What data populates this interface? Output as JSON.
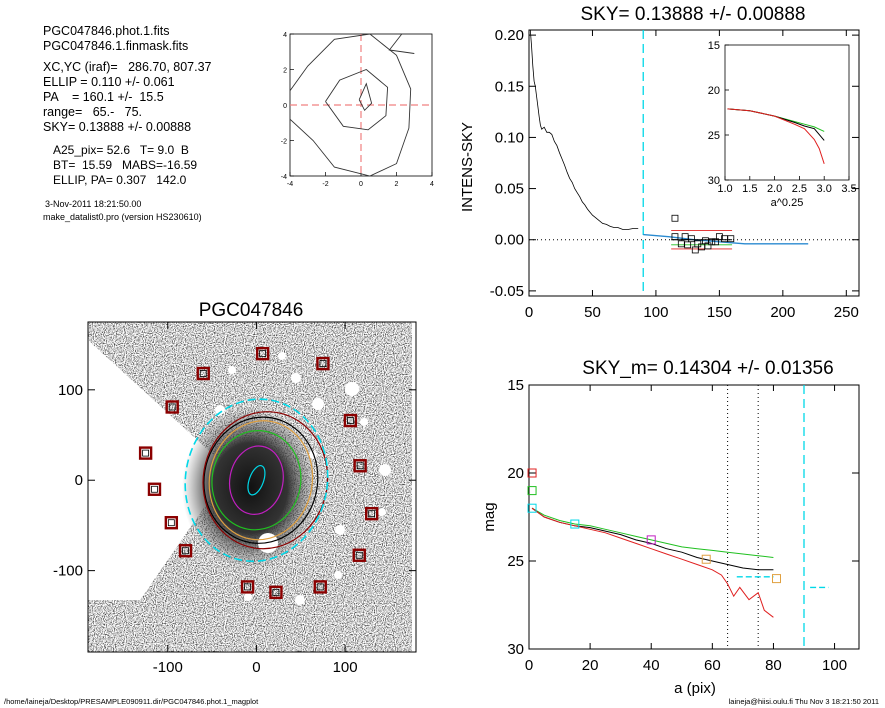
{
  "info": {
    "lines1": [
      "PGC047846.phot.1.fits",
      "PGC047846.1.finmask.fits"
    ],
    "lines2": [
      "XC,YC (iraf)=   286.70, 807.37",
      "ELLIP = 0.110 +/- 0.061",
      "PA    = 160.1 +/-  15.5",
      "range=   65.-   75.",
      "SKY= 0.13888 +/- 0.00888"
    ],
    "lines3": [
      "A25_pix= 52.6   T= 9.0  B",
      "BT=  15.59   MABS=-16.59",
      "ELLIP, PA= 0.307   142.0"
    ],
    "date": "3-Nov-2011 18:21:50.00",
    "program": "make_datalist0.pro (version HS230610)"
  },
  "footer": {
    "left": "/home/laineja/Desktop/PRESAMPLE090911.dir/PGC047846.phot.1_magplot",
    "right": "laineja@hiisi.oulu.fi  Thu Nov  3 18:21:50 2011"
  },
  "colors": {
    "cyan": "#00d8e8",
    "red": "#e02020",
    "green": "#20c020",
    "magenta": "#c020c0",
    "orange": "#e0a040",
    "black": "#000000",
    "darkred": "#8b0000"
  },
  "chart_data": [
    {
      "id": "contour",
      "type": "contour",
      "xlim": [
        -4,
        4
      ],
      "ylim": [
        -4,
        4
      ],
      "xticks": [
        -4,
        -2,
        0,
        2,
        4
      ],
      "yticks": [
        -4,
        -2,
        0,
        2,
        4
      ],
      "center": [
        0,
        0
      ],
      "contours": [
        [
          [
            -0.1,
            0.3
          ],
          [
            0.3,
            1.2
          ],
          [
            0.6,
            0.1
          ],
          [
            0.2,
            -0.3
          ],
          [
            -0.1,
            0.3
          ]
        ],
        [
          [
            -2.0,
            0.2
          ],
          [
            -1.2,
            1.4
          ],
          [
            0.3,
            2.0
          ],
          [
            1.5,
            1.0
          ],
          [
            1.4,
            -0.6
          ],
          [
            0.4,
            -1.4
          ],
          [
            -1.0,
            -1.2
          ],
          [
            -2.0,
            0.2
          ]
        ],
        [
          [
            -4.0,
            0.8
          ],
          [
            -3.0,
            2.2
          ],
          [
            -1.5,
            3.7
          ],
          [
            0.5,
            4.0
          ],
          [
            2.0,
            2.8
          ],
          [
            2.8,
            0.9
          ],
          [
            2.7,
            -1.3
          ],
          [
            2.0,
            -3.3
          ],
          [
            0.5,
            -4.0
          ],
          [
            -1.5,
            -3.5
          ],
          [
            -2.7,
            -2.0
          ],
          [
            -4.0,
            -0.8
          ]
        ]
      ],
      "extra_line": [
        [
          3.0,
          2.9
        ],
        [
          1.6,
          3.1
        ],
        [
          2.3,
          4.0
        ]
      ]
    },
    {
      "id": "sky",
      "type": "line",
      "title": "SKY= 0.13888 +/- 0.00888",
      "xlabel": "",
      "ylabel": "INTENS-SKY",
      "xlim": [
        0,
        260
      ],
      "ylim": [
        -0.055,
        0.205
      ],
      "xticks": [
        0,
        50,
        100,
        150,
        200,
        250
      ],
      "yticks": [
        -0.05,
        0.0,
        0.05,
        0.1,
        0.15,
        0.2
      ],
      "ytick_labels": [
        "-0.05",
        "0.00",
        "0.05",
        "0.10",
        "0.15",
        "0.20"
      ],
      "profile": [
        [
          1,
          0.205
        ],
        [
          2,
          0.19
        ],
        [
          3,
          0.17
        ],
        [
          4,
          0.155
        ],
        [
          5,
          0.15
        ],
        [
          6,
          0.14
        ],
        [
          7,
          0.13
        ],
        [
          8,
          0.12
        ],
        [
          9,
          0.112
        ],
        [
          10,
          0.108
        ],
        [
          12,
          0.11
        ],
        [
          14,
          0.105
        ],
        [
          16,
          0.105
        ],
        [
          18,
          0.103
        ],
        [
          20,
          0.096
        ],
        [
          22,
          0.092
        ],
        [
          24,
          0.085
        ],
        [
          26,
          0.079
        ],
        [
          28,
          0.073
        ],
        [
          30,
          0.066
        ],
        [
          32,
          0.06
        ],
        [
          34,
          0.056
        ],
        [
          36,
          0.05
        ],
        [
          38,
          0.046
        ],
        [
          40,
          0.042
        ],
        [
          42,
          0.037
        ],
        [
          44,
          0.034
        ],
        [
          46,
          0.03
        ],
        [
          48,
          0.027
        ],
        [
          50,
          0.024
        ],
        [
          52,
          0.022
        ],
        [
          55,
          0.019
        ],
        [
          58,
          0.016
        ],
        [
          61,
          0.015
        ],
        [
          64,
          0.013
        ],
        [
          67,
          0.012
        ],
        [
          70,
          0.012
        ],
        [
          74,
          0.01
        ],
        [
          78,
          0.01
        ],
        [
          82,
          0.011
        ],
        [
          86,
          0.011
        ]
      ],
      "sky_line": [
        [
          90,
          0.005
        ],
        [
          110,
          0.003
        ],
        [
          130,
          0.0
        ],
        [
          150,
          -0.002
        ],
        [
          170,
          -0.004
        ],
        [
          190,
          -0.004
        ],
        [
          220,
          -0.004
        ]
      ],
      "sky_vline": 90,
      "red_levels": [
        0.009,
        -0.009
      ],
      "red_range": [
        112,
        160
      ],
      "squares": [
        [
          115,
          0.003
        ],
        [
          115,
          0.021
        ],
        [
          120,
          -0.004
        ],
        [
          123,
          0.003
        ],
        [
          125,
          -0.005
        ],
        [
          128,
          0.001
        ],
        [
          131,
          -0.01
        ],
        [
          133,
          -0.004
        ],
        [
          136,
          -0.007
        ],
        [
          139,
          -0.001
        ],
        [
          141,
          -0.006
        ],
        [
          144,
          -0.002
        ],
        [
          147,
          -0.002
        ],
        [
          150,
          0.003
        ],
        [
          154,
          0.001
        ],
        [
          159,
          0.001
        ]
      ],
      "inset": {
        "xlabel": "a^0.25",
        "xlim": [
          1.0,
          3.5
        ],
        "ylim": [
          30,
          15
        ],
        "xticks": [
          1.0,
          1.5,
          2.0,
          2.5,
          3.0,
          3.5
        ],
        "xtick_labels": [
          "1.0",
          "1.5",
          "2.0",
          "2.5",
          "3.0",
          "3.5"
        ],
        "yticks": [
          15,
          20,
          25,
          30
        ],
        "series": [
          {
            "color": "green",
            "points": [
              [
                1.05,
                22.1
              ],
              [
                1.5,
                22.3
              ],
              [
                2.0,
                22.9
              ],
              [
                2.4,
                23.5
              ],
              [
                2.6,
                23.8
              ],
              [
                2.8,
                24.1
              ],
              [
                3.0,
                24.6
              ]
            ]
          },
          {
            "color": "black",
            "points": [
              [
                1.05,
                22.1
              ],
              [
                1.5,
                22.3
              ],
              [
                2.0,
                22.9
              ],
              [
                2.4,
                23.6
              ],
              [
                2.6,
                24.0
              ],
              [
                2.8,
                24.3
              ],
              [
                3.0,
                25.6
              ]
            ]
          },
          {
            "color": "red",
            "points": [
              [
                1.05,
                22.1
              ],
              [
                1.5,
                22.3
              ],
              [
                2.0,
                22.9
              ],
              [
                2.4,
                23.8
              ],
              [
                2.6,
                24.3
              ],
              [
                2.8,
                25.5
              ],
              [
                2.9,
                26.5
              ],
              [
                3.0,
                28.2
              ]
            ]
          }
        ]
      }
    },
    {
      "id": "image",
      "type": "image",
      "title": "PGC047846",
      "xlim": [
        -190,
        180
      ],
      "ylim": [
        -190,
        175
      ],
      "xticks": [
        -100,
        0,
        100
      ],
      "yticks": [
        -100,
        0,
        100
      ],
      "masks": [
        [
          7,
          140
        ],
        [
          75,
          129
        ],
        [
          -60,
          118
        ],
        [
          -95,
          81
        ],
        [
          106,
          66
        ],
        [
          -125,
          30
        ],
        [
          117,
          16
        ],
        [
          -115,
          -10
        ],
        [
          130,
          -37
        ],
        [
          -96,
          -47
        ],
        [
          116,
          -83
        ],
        [
          -80,
          -78
        ],
        [
          -10,
          -118
        ],
        [
          72,
          -118
        ],
        [
          22,
          -124
        ]
      ],
      "ellipses": [
        {
          "color": "cyan",
          "cx": 0,
          "cy": 0,
          "rx": 8,
          "ry": 17,
          "rot": 20
        },
        {
          "color": "magenta",
          "cx": 0,
          "cy": 0,
          "rx": 30,
          "ry": 38,
          "rot": 10
        },
        {
          "color": "green",
          "cx": 0,
          "cy": 0,
          "rx": 50,
          "ry": 55,
          "rot": 10
        },
        {
          "color": "orange",
          "cx": 5,
          "cy": 0,
          "rx": 58,
          "ry": 66,
          "rot": 10
        },
        {
          "color": "black",
          "cx": 5,
          "cy": 0,
          "rx": 64,
          "ry": 70,
          "rot": 10
        },
        {
          "color": "darkred",
          "cx": 10,
          "cy": 0,
          "rx": 70,
          "ry": 76,
          "rot": 10
        },
        {
          "color": "cyan",
          "cx": 0,
          "cy": 0,
          "rx": 80,
          "ry": 90,
          "rot": 10
        }
      ]
    },
    {
      "id": "mag",
      "type": "line",
      "title": "SKY_m=  0.14304 +/- 0.01356",
      "xlabel": "a (pix)",
      "ylabel": "mag",
      "xlim": [
        0,
        108
      ],
      "ylim": [
        30,
        15
      ],
      "xticks": [
        0,
        20,
        40,
        60,
        80,
        100
      ],
      "yticks": [
        15,
        20,
        25,
        30
      ],
      "vlines_dotted": [
        65,
        75
      ],
      "vline_dashed": 90,
      "series": [
        {
          "color": "green",
          "points": [
            [
              1,
              22.0
            ],
            [
              5,
              22.4
            ],
            [
              10,
              22.7
            ],
            [
              15,
              22.9
            ],
            [
              20,
              23.0
            ],
            [
              25,
              23.2
            ],
            [
              30,
              23.4
            ],
            [
              35,
              23.6
            ],
            [
              40,
              23.8
            ],
            [
              45,
              24.0
            ],
            [
              50,
              24.2
            ],
            [
              55,
              24.3
            ],
            [
              60,
              24.4
            ],
            [
              65,
              24.5
            ],
            [
              70,
              24.6
            ],
            [
              75,
              24.7
            ],
            [
              80,
              24.8
            ]
          ]
        },
        {
          "color": "black",
          "points": [
            [
              1,
              22.0
            ],
            [
              5,
              22.5
            ],
            [
              10,
              22.8
            ],
            [
              15,
              23.0
            ],
            [
              20,
              23.1
            ],
            [
              25,
              23.3
            ],
            [
              30,
              23.5
            ],
            [
              35,
              23.8
            ],
            [
              40,
              24.0
            ],
            [
              45,
              24.3
            ],
            [
              50,
              24.5
            ],
            [
              55,
              24.8
            ],
            [
              60,
              25.0
            ],
            [
              65,
              25.2
            ],
            [
              70,
              25.4
            ],
            [
              75,
              25.5
            ],
            [
              80,
              25.5
            ]
          ]
        },
        {
          "color": "red",
          "points": [
            [
              1,
              22.0
            ],
            [
              5,
              22.5
            ],
            [
              10,
              22.8
            ],
            [
              15,
              23.0
            ],
            [
              20,
              23.2
            ],
            [
              25,
              23.4
            ],
            [
              30,
              23.7
            ],
            [
              35,
              24.0
            ],
            [
              40,
              24.3
            ],
            [
              45,
              24.6
            ],
            [
              50,
              24.9
            ],
            [
              55,
              25.2
            ],
            [
              60,
              25.5
            ],
            [
              63,
              25.8
            ],
            [
              65,
              26.3
            ],
            [
              67,
              27.0
            ],
            [
              69,
              26.5
            ],
            [
              72,
              27.2
            ],
            [
              75,
              26.8
            ],
            [
              77,
              27.8
            ],
            [
              80,
              28.2
            ]
          ]
        }
      ],
      "markers": [
        {
          "color": "red",
          "x": 1,
          "y": 20.0
        },
        {
          "color": "green",
          "x": 1,
          "y": 21.0
        },
        {
          "color": "cyan",
          "x": 1,
          "y": 22.0
        },
        {
          "color": "cyan",
          "x": 15,
          "y": 22.9
        },
        {
          "color": "magenta",
          "x": 40,
          "y": 23.8
        },
        {
          "color": "orange",
          "x": 58,
          "y": 24.9
        },
        {
          "color": "orange",
          "x": 81,
          "y": 26.0
        }
      ],
      "sky_segments": [
        {
          "color": "cyan",
          "x": [
            68,
            80
          ],
          "y": 25.9
        },
        {
          "color": "cyan",
          "x": [
            92,
            98
          ],
          "y": 26.5
        }
      ]
    }
  ]
}
